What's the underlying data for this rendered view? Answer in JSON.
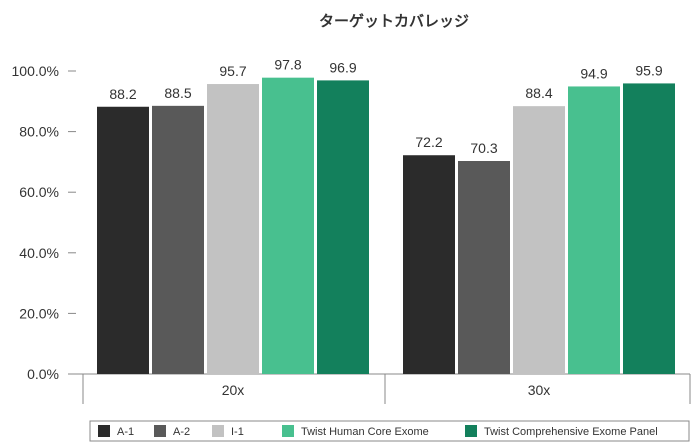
{
  "chart_data": {
    "type": "bar",
    "title": "ターゲットカバレッジ",
    "xlabel": "",
    "ylabel": "",
    "categories": [
      "20x",
      "30x"
    ],
    "series": [
      {
        "name": "A-1",
        "values": [
          88.2,
          72.2
        ],
        "labels": [
          "88.2",
          "72.2"
        ],
        "color": "#2b2b2b"
      },
      {
        "name": "A-2",
        "values": [
          88.5,
          70.3
        ],
        "labels": [
          "88.5",
          "70.3"
        ],
        "color": "#595959"
      },
      {
        "name": "I-1",
        "values": [
          95.7,
          88.4
        ],
        "labels": [
          "95.7",
          "88.4"
        ],
        "color": "#c2c2c2"
      },
      {
        "name": "Twist Human Core Exome",
        "values": [
          97.8,
          94.9
        ],
        "labels": [
          "97.8",
          "94.9"
        ],
        "color": "#48c08f"
      },
      {
        "name": "Twist Comprehensive Exome Panel",
        "values": [
          96.9,
          95.9
        ],
        "labels": [
          "96.9",
          "95.9"
        ],
        "color": "#13805c"
      }
    ],
    "ylim": [
      0,
      100
    ],
    "yticks": [
      0,
      20,
      40,
      60,
      80,
      100
    ],
    "ytick_labels": [
      "0.0%",
      "20.0%",
      "40.0%",
      "60.0%",
      "80.0%",
      "100.0%"
    ],
    "grid": false,
    "legend_position": "bottom"
  }
}
